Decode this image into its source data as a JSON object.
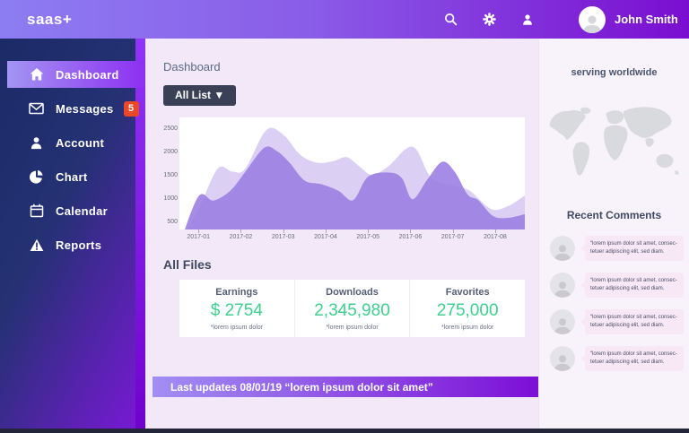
{
  "topbar": {
    "logo": "saas+",
    "user_name": "John Smith",
    "icons": [
      "search-icon",
      "settings-icon",
      "user-icon"
    ]
  },
  "sidebar": {
    "items": [
      {
        "label": "Dashboard",
        "icon": "home-icon",
        "active": true
      },
      {
        "label": "Messages",
        "icon": "mail-icon",
        "badge": "5"
      },
      {
        "label": "Account",
        "icon": "user-icon"
      },
      {
        "label": "Chart",
        "icon": "pie-chart-icon"
      },
      {
        "label": "Calendar",
        "icon": "calendar-icon"
      },
      {
        "label": "Reports",
        "icon": "alert-icon"
      }
    ]
  },
  "main": {
    "title": "Dashboard",
    "filter_button": "All List ▼",
    "all_files": {
      "heading": "All Files",
      "stats": [
        {
          "label": "Earnings",
          "value": "$ 2754",
          "note": "*lorem ipsum dolor"
        },
        {
          "label": "Downloads",
          "value": "2,345,980",
          "note": "*lorem ipsum dolor"
        },
        {
          "label": "Favorites",
          "value": "275,000",
          "note": "*lorem ipsum dolor"
        }
      ]
    },
    "last_updates": "Last updates 08/01/19 “lorem ipsum dolor sit amet”"
  },
  "rightbar": {
    "serving": "serving worldwide",
    "comments_heading": "Recent Comments",
    "comments": [
      "“lorem ipsum dolor sit amet, consec­tetuer adipiscing elit, sed diam.",
      "“lorem ipsum dolor sit amet, consec­tetuer adipiscing elit, sed diam.",
      "“lorem ipsum dolor sit amet, consec­tetuer adipiscing elit, sed diam.",
      "“lorem ipsum dolor sit amet, consec­tetuer adipiscing elit, sed diam."
    ]
  },
  "colors": {
    "topbar_gradient": [
      "#8d7df2",
      "#7a0ed0"
    ],
    "sidebar_gradient": [
      "#1c2a68",
      "#7d18da"
    ],
    "active_item_gradient": [
      "#a395f3",
      "#8d2ff1"
    ],
    "badge_red": "#ea4628",
    "stat_green": "#3fcf8e",
    "main_bg": "#f3e8f7",
    "rightbar_bg": "#f8f2fb",
    "button_bg": "#3a4157",
    "series_light": "#dbd0f4",
    "series_dark": "#9a7ce2"
  },
  "chart_data": {
    "type": "area",
    "title": "",
    "xlabel": "",
    "ylabel": "",
    "categories": [
      "2017-01",
      "2017-02",
      "2017-03",
      "2017-04",
      "2017-05",
      "2017-06",
      "2017-07",
      "2017-08"
    ],
    "yticks": [
      500,
      1000,
      1500,
      2000,
      2500
    ],
    "ylim": [
      350,
      2750
    ],
    "xlim": [
      0.55,
      8.7
    ],
    "grid": false,
    "legend": "none",
    "series": [
      {
        "name": "series-light",
        "color": "#dbd0f4",
        "points": [
          [
            0.55,
            50
          ],
          [
            1,
            780
          ],
          [
            1.45,
            1650
          ],
          [
            1.8,
            1590
          ],
          [
            2.1,
            1650
          ],
          [
            2.6,
            2480
          ],
          [
            3,
            2380
          ],
          [
            3.4,
            1950
          ],
          [
            3.8,
            1780
          ],
          [
            4.2,
            1820
          ],
          [
            4.5,
            1900
          ],
          [
            4.8,
            1700
          ],
          [
            5.1,
            1520
          ],
          [
            5.5,
            1720
          ],
          [
            5.9,
            2080
          ],
          [
            6.15,
            2050
          ],
          [
            6.5,
            1450
          ],
          [
            7,
            1300
          ],
          [
            7.4,
            1180
          ],
          [
            7.9,
            790
          ],
          [
            8.3,
            850
          ],
          [
            8.7,
            1080
          ]
        ]
      },
      {
        "name": "series-dark",
        "color": "rgba(154,124,226,0.88)",
        "points": [
          [
            0.55,
            20
          ],
          [
            1,
            1060
          ],
          [
            1.35,
            970
          ],
          [
            1.75,
            1180
          ],
          [
            2.1,
            1580
          ],
          [
            2.55,
            2100
          ],
          [
            2.85,
            2030
          ],
          [
            3.15,
            1780
          ],
          [
            3.5,
            1400
          ],
          [
            3.9,
            1320
          ],
          [
            4.3,
            1180
          ],
          [
            4.65,
            980
          ],
          [
            5,
            1480
          ],
          [
            5.5,
            1570
          ],
          [
            5.8,
            1450
          ],
          [
            6.05,
            1000
          ],
          [
            6.4,
            1420
          ],
          [
            6.75,
            1800
          ],
          [
            7.05,
            1580
          ],
          [
            7.35,
            1100
          ],
          [
            7.6,
            980
          ],
          [
            7.95,
            640
          ],
          [
            8.3,
            600
          ],
          [
            8.7,
            680
          ]
        ]
      }
    ]
  }
}
